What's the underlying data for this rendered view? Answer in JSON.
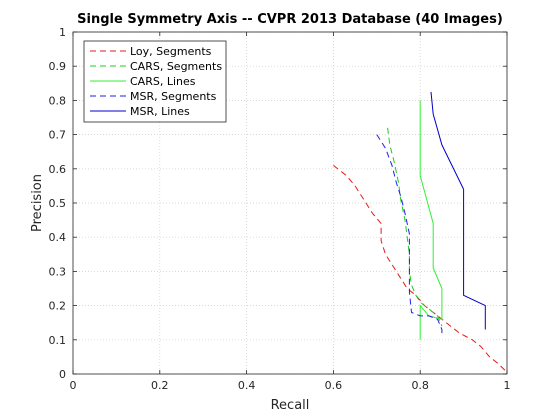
{
  "chart_data": {
    "type": "line",
    "title": "Single Symmetry Axis -- CVPR 2013 Database (40 Images)",
    "xlabel": "Recall",
    "ylabel": "Precision",
    "xlim": [
      0,
      1
    ],
    "ylim": [
      0,
      1
    ],
    "xticks": [
      "0",
      "0.2",
      "0.4",
      "0.6",
      "0.8",
      "1"
    ],
    "yticks": [
      "0",
      "0.1",
      "0.2",
      "0.3",
      "0.4",
      "0.5",
      "0.6",
      "0.7",
      "0.8",
      "0.9",
      "1"
    ],
    "grid": true,
    "legend_position": "top-left",
    "series": [
      {
        "name": "Loy, Segments",
        "color": "#e41a1c",
        "dash": "dashed",
        "points": [
          [
            0.6,
            0.61
          ],
          [
            0.63,
            0.58
          ],
          [
            0.65,
            0.55
          ],
          [
            0.67,
            0.51
          ],
          [
            0.69,
            0.47
          ],
          [
            0.71,
            0.44
          ],
          [
            0.71,
            0.39
          ],
          [
            0.72,
            0.35
          ],
          [
            0.73,
            0.33
          ],
          [
            0.75,
            0.29
          ],
          [
            0.77,
            0.25
          ],
          [
            0.79,
            0.23
          ],
          [
            0.81,
            0.2
          ],
          [
            0.83,
            0.18
          ],
          [
            0.86,
            0.15
          ],
          [
            0.89,
            0.12
          ],
          [
            0.92,
            0.1
          ],
          [
            0.94,
            0.08
          ],
          [
            0.96,
            0.05
          ],
          [
            0.98,
            0.03
          ],
          [
            1.0,
            0.005
          ]
        ]
      },
      {
        "name": "CARS, Segments",
        "color": "#1fcc1f",
        "dash": "dashed",
        "points": [
          [
            0.725,
            0.72
          ],
          [
            0.73,
            0.67
          ],
          [
            0.74,
            0.62
          ],
          [
            0.75,
            0.56
          ],
          [
            0.755,
            0.51
          ],
          [
            0.765,
            0.45
          ],
          [
            0.77,
            0.4
          ],
          [
            0.775,
            0.35
          ],
          [
            0.775,
            0.3
          ],
          [
            0.78,
            0.26
          ],
          [
            0.79,
            0.23
          ],
          [
            0.8,
            0.21
          ],
          [
            0.82,
            0.19
          ],
          [
            0.84,
            0.17
          ],
          [
            0.85,
            0.14
          ]
        ]
      },
      {
        "name": "CARS, Lines",
        "color": "#33ee33",
        "dash": "solid",
        "points": [
          [
            0.8,
            0.8
          ],
          [
            0.8,
            0.58
          ],
          [
            0.83,
            0.44
          ],
          [
            0.83,
            0.31
          ],
          [
            0.85,
            0.25
          ],
          [
            0.85,
            0.16
          ],
          [
            0.82,
            0.17
          ],
          [
            0.8,
            0.2
          ],
          [
            0.8,
            0.1
          ]
        ]
      },
      {
        "name": "MSR, Segments",
        "color": "#1f1fee",
        "dash": "dashed",
        "points": [
          [
            0.7,
            0.7
          ],
          [
            0.72,
            0.66
          ],
          [
            0.735,
            0.61
          ],
          [
            0.745,
            0.56
          ],
          [
            0.755,
            0.52
          ],
          [
            0.765,
            0.47
          ],
          [
            0.775,
            0.41
          ],
          [
            0.775,
            0.35
          ],
          [
            0.775,
            0.3
          ],
          [
            0.775,
            0.24
          ],
          [
            0.78,
            0.18
          ],
          [
            0.8,
            0.17
          ],
          [
            0.82,
            0.17
          ],
          [
            0.84,
            0.16
          ],
          [
            0.85,
            0.13
          ],
          [
            0.85,
            0.11
          ]
        ]
      },
      {
        "name": "MSR, Lines",
        "color": "#0000cc",
        "dash": "solid",
        "points": [
          [
            0.825,
            0.825
          ],
          [
            0.83,
            0.76
          ],
          [
            0.85,
            0.67
          ],
          [
            0.9,
            0.54
          ],
          [
            0.9,
            0.23
          ],
          [
            0.95,
            0.2
          ],
          [
            0.95,
            0.13
          ]
        ]
      }
    ]
  }
}
